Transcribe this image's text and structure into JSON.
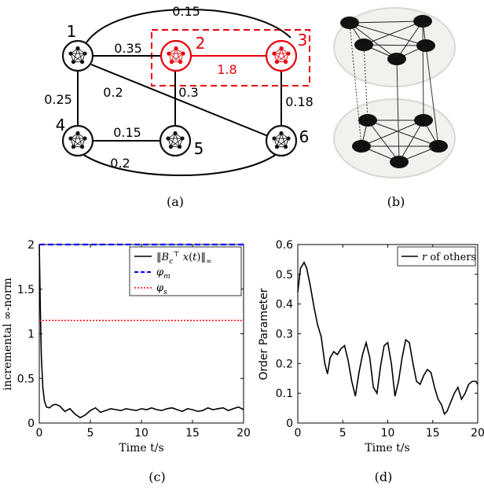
{
  "panel_a": {
    "caption": "(a)",
    "nodes": [
      {
        "id": "1",
        "label": "1",
        "highlight": false
      },
      {
        "id": "2",
        "label": "2",
        "highlight": true
      },
      {
        "id": "3",
        "label": "3",
        "highlight": true
      },
      {
        "id": "4",
        "label": "4",
        "highlight": false
      },
      {
        "id": "5",
        "label": "5",
        "highlight": false
      },
      {
        "id": "6",
        "label": "6",
        "highlight": false
      }
    ],
    "edges": [
      {
        "from": "1",
        "to": "3",
        "label": "0.15"
      },
      {
        "from": "1",
        "to": "2",
        "label": "0.35"
      },
      {
        "from": "2",
        "to": "3",
        "label": "1.8"
      },
      {
        "from": "1",
        "to": "4",
        "label": "0.25"
      },
      {
        "from": "1",
        "to": "6",
        "label": "0.2"
      },
      {
        "from": "2",
        "to": "5",
        "label": "0.3"
      },
      {
        "from": "3",
        "to": "6",
        "label": "0.18"
      },
      {
        "from": "4",
        "to": "5",
        "label": "0.15"
      },
      {
        "from": "4",
        "to": "6",
        "label": "0.2"
      }
    ],
    "highlight_color": "#e8000b",
    "node_color": "#111111"
  },
  "panel_b": {
    "caption": "(b)",
    "disc_color": "#f2f1ee",
    "disc_border": "#d9d7d2"
  },
  "panel_c": {
    "caption": "(c)",
    "chart_data": {
      "type": "line",
      "xlabel": "Time t/s",
      "ylabel": "incremental ∞-norm",
      "xlim": [
        0,
        20
      ],
      "ylim": [
        0,
        2
      ],
      "xticks": [
        "0",
        "5",
        "10",
        "15",
        "20"
      ],
      "yticks": [
        "0",
        "0.5",
        "1",
        "1.5",
        "2"
      ],
      "legend_position": "top-right",
      "series": [
        {
          "name": "‖B_c^T x(t)‖_∞",
          "color": "#000000",
          "style": "solid",
          "x": [
            0,
            0.1,
            0.2,
            0.35,
            0.5,
            0.7,
            1.0,
            1.3,
            1.6,
            2.0,
            2.5,
            3.0,
            3.5,
            4.0,
            4.5,
            5.0,
            5.5,
            6.0,
            6.5,
            7.0,
            7.5,
            8.0,
            8.5,
            9.0,
            9.5,
            10.0,
            10.5,
            11.0,
            11.5,
            12.0,
            12.5,
            13.0,
            13.5,
            14.0,
            14.5,
            15.0,
            15.5,
            16.0,
            16.5,
            17.0,
            17.5,
            18.0,
            18.5,
            19.0,
            19.5,
            20.0
          ],
          "y": [
            2.0,
            1.3,
            0.75,
            0.4,
            0.25,
            0.18,
            0.17,
            0.2,
            0.21,
            0.19,
            0.13,
            0.16,
            0.1,
            0.06,
            0.09,
            0.14,
            0.17,
            0.12,
            0.14,
            0.16,
            0.15,
            0.14,
            0.16,
            0.15,
            0.14,
            0.16,
            0.15,
            0.17,
            0.15,
            0.14,
            0.16,
            0.17,
            0.15,
            0.13,
            0.16,
            0.15,
            0.13,
            0.14,
            0.17,
            0.15,
            0.16,
            0.17,
            0.14,
            0.16,
            0.18,
            0.15
          ]
        },
        {
          "name": "φ_m",
          "color": "#0000ff",
          "style": "dashed",
          "x": [
            0,
            20
          ],
          "y": [
            2.0,
            2.0
          ]
        },
        {
          "name": "φ_s",
          "color": "#ff0000",
          "style": "dotted",
          "x": [
            0,
            20
          ],
          "y": [
            1.15,
            1.15
          ]
        }
      ]
    }
  },
  "panel_d": {
    "caption": "(d)",
    "chart_data": {
      "type": "line",
      "xlabel": "Time t/s",
      "ylabel": "Order Parameter",
      "xlim": [
        0,
        20
      ],
      "ylim": [
        0,
        0.6
      ],
      "xticks": [
        "0",
        "5",
        "10",
        "15",
        "20"
      ],
      "yticks": [
        "0",
        "0.1",
        "0.2",
        "0.3",
        "0.4",
        "0.5",
        "0.6"
      ],
      "legend_position": "top-right",
      "series": [
        {
          "name": "r of others",
          "color": "#000000",
          "style": "solid",
          "x": [
            0,
            0.3,
            0.7,
            1.0,
            1.4,
            1.8,
            2.2,
            2.6,
            3.0,
            3.3,
            3.6,
            4.0,
            4.4,
            4.8,
            5.2,
            5.6,
            6.0,
            6.4,
            6.8,
            7.2,
            7.6,
            8.0,
            8.4,
            8.8,
            9.2,
            9.6,
            10.0,
            10.4,
            10.8,
            11.2,
            11.6,
            12.0,
            12.4,
            12.8,
            13.2,
            13.6,
            14.0,
            14.4,
            14.8,
            15.2,
            15.6,
            16.0,
            16.3,
            16.6,
            17.0,
            17.4,
            17.8,
            18.2,
            18.6,
            19.0,
            19.4,
            19.8,
            20.0
          ],
          "y": [
            0.44,
            0.52,
            0.54,
            0.52,
            0.46,
            0.39,
            0.33,
            0.29,
            0.2,
            0.165,
            0.22,
            0.24,
            0.23,
            0.25,
            0.26,
            0.21,
            0.14,
            0.09,
            0.17,
            0.23,
            0.27,
            0.22,
            0.12,
            0.1,
            0.19,
            0.26,
            0.27,
            0.2,
            0.09,
            0.14,
            0.22,
            0.28,
            0.27,
            0.2,
            0.14,
            0.13,
            0.16,
            0.18,
            0.17,
            0.12,
            0.08,
            0.06,
            0.03,
            0.04,
            0.07,
            0.1,
            0.12,
            0.08,
            0.1,
            0.13,
            0.14,
            0.14,
            0.13
          ]
        }
      ]
    }
  }
}
